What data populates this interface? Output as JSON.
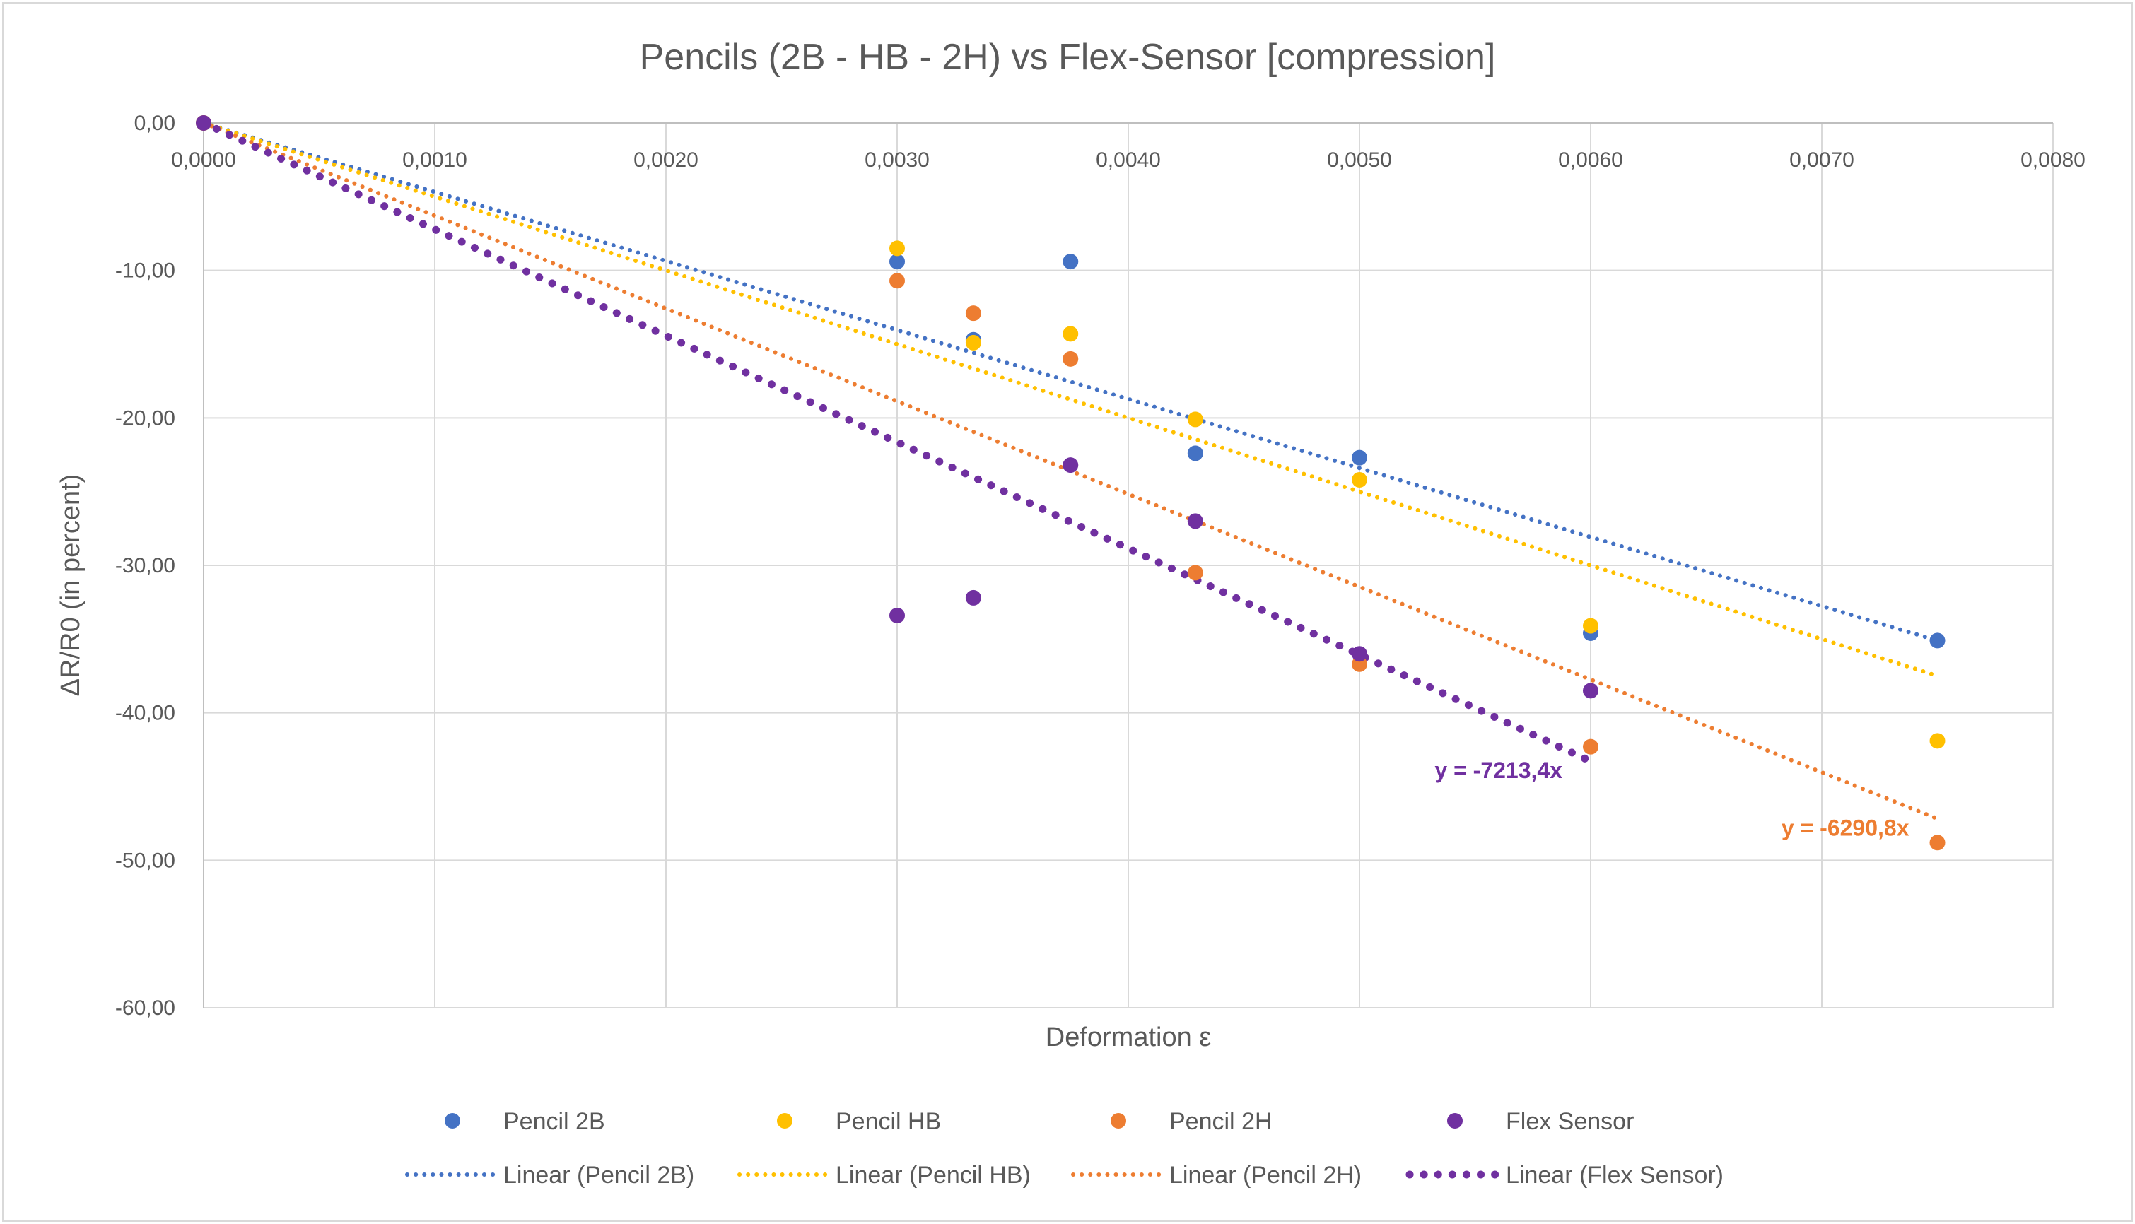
{
  "chart_data": {
    "type": "scatter",
    "title": "Pencils (2B - HB - 2H) vs Flex-Sensor [compression]",
    "xlabel": "Deformation ε",
    "ylabel": "ΔR/R0 (in percent)",
    "xlim": [
      0,
      0.008
    ],
    "ylim": [
      -60,
      0
    ],
    "x_ticks": [
      0,
      0.001,
      0.002,
      0.003,
      0.004,
      0.005,
      0.006,
      0.007,
      0.008
    ],
    "x_tick_labels": [
      "0,0000",
      "0,0010",
      "0,0020",
      "0,0030",
      "0,0040",
      "0,0050",
      "0,0060",
      "0,0070",
      "0,0080"
    ],
    "y_ticks": [
      0,
      -10,
      -20,
      -30,
      -40,
      -50,
      -60
    ],
    "y_tick_labels": [
      "0,00",
      "-10,00",
      "-20,00",
      "-30,00",
      "-40,00",
      "-50,00",
      "-60,00"
    ],
    "grid": true,
    "legend_position": "bottom",
    "series": [
      {
        "name": "Pencil 2B",
        "trend_name": "Linear (Pencil 2B)",
        "color": "#4472C4",
        "x": [
          0,
          0.003,
          0.00333,
          0.00375,
          0.00429,
          0.005,
          0.006,
          0.0075
        ],
        "y": [
          0,
          -9.4,
          -14.7,
          -9.4,
          -22.4,
          -22.7,
          -34.6,
          -35.1
        ],
        "trend_slope": -4680,
        "trend_x_end": 0.0075
      },
      {
        "name": "Pencil HB",
        "trend_name": "Linear (Pencil HB)",
        "color": "#FFC000",
        "x": [
          0,
          0.003,
          0.00333,
          0.00375,
          0.00429,
          0.005,
          0.006,
          0.0075
        ],
        "y": [
          0,
          -8.5,
          -14.9,
          -14.3,
          -20.1,
          -24.2,
          -34.1,
          -41.9
        ],
        "trend_slope": -5000,
        "trend_x_end": 0.0075
      },
      {
        "name": "Pencil 2H",
        "trend_name": "Linear (Pencil 2H)",
        "color": "#ED7D31",
        "x": [
          0,
          0.003,
          0.00333,
          0.00375,
          0.00429,
          0.005,
          0.006,
          0.0075
        ],
        "y": [
          0,
          -10.7,
          -12.9,
          -16.0,
          -30.5,
          -36.7,
          -42.3,
          -48.8
        ],
        "trend_slope": -6290.8,
        "trend_x_end": 0.0075,
        "equation": "y = -6290,8x"
      },
      {
        "name": "Flex Sensor",
        "trend_name": "Linear (Flex Sensor)",
        "color": "#7030A0",
        "x": [
          0,
          0.003,
          0.00333,
          0.00375,
          0.00429,
          0.005,
          0.006
        ],
        "y": [
          0,
          -33.4,
          -32.2,
          -23.2,
          -27.0,
          -36.0,
          -38.5
        ],
        "trend_slope": -7213.4,
        "trend_x_end": 0.006,
        "equation": "y = -7213,4x"
      }
    ]
  }
}
